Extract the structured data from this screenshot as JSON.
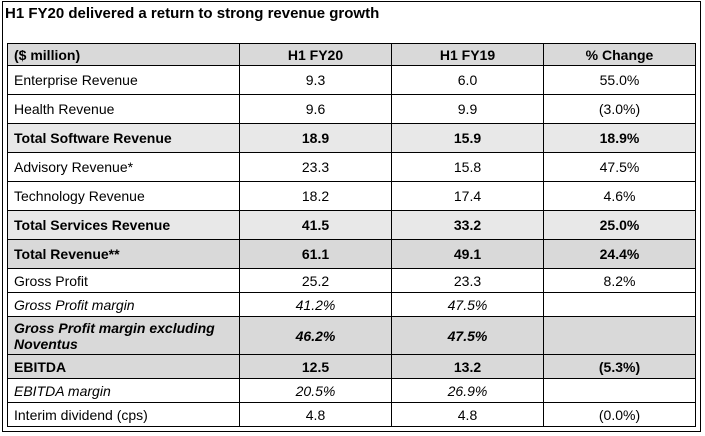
{
  "heading": "H1 FY20 delivered a return to strong revenue growth",
  "table": {
    "headers": [
      "($ million)",
      "H1 FY20",
      "H1 FY19",
      "% Change"
    ],
    "rows": [
      {
        "style": "normal",
        "cells": [
          "Enterprise Revenue",
          "9.3",
          "6.0",
          "55.0%"
        ]
      },
      {
        "style": "normal",
        "cells": [
          "Health Revenue",
          "9.6",
          "9.9",
          "(3.0%)"
        ]
      },
      {
        "style": "bold",
        "cells": [
          "Total Software Revenue",
          "18.9",
          "15.9",
          "18.9%"
        ]
      },
      {
        "style": "normal",
        "cells": [
          "Advisory Revenue*",
          "23.3",
          "15.8",
          "47.5%"
        ]
      },
      {
        "style": "normal",
        "cells": [
          "Technology Revenue",
          "18.2",
          "17.4",
          "4.6%"
        ]
      },
      {
        "style": "bold",
        "cells": [
          "Total Services Revenue",
          "41.5",
          "33.2",
          "25.0%"
        ]
      },
      {
        "style": "bold shade",
        "cells": [
          "Total Revenue**",
          "61.1",
          "49.1",
          "24.4%"
        ]
      },
      {
        "style": "normal short",
        "cells": [
          "Gross Profit",
          "25.2",
          "23.3",
          "8.2%"
        ]
      },
      {
        "style": "italic short",
        "cells": [
          "Gross Profit margin",
          "41.2%",
          "47.5%",
          ""
        ]
      },
      {
        "style": "bold italic shade tall",
        "cells": [
          "Gross Profit margin excluding Noventus",
          "46.2%",
          "47.5%",
          ""
        ]
      },
      {
        "style": "bold shade short",
        "cells": [
          "EBITDA",
          "12.5",
          "13.2",
          "(5.3%)"
        ]
      },
      {
        "style": "italic short",
        "cells": [
          "EBITDA margin",
          "20.5%",
          "26.9%",
          ""
        ]
      },
      {
        "style": "normal short",
        "cells": [
          "Interim dividend (cps)",
          "4.8",
          "4.8",
          "(0.0%)"
        ]
      }
    ]
  }
}
